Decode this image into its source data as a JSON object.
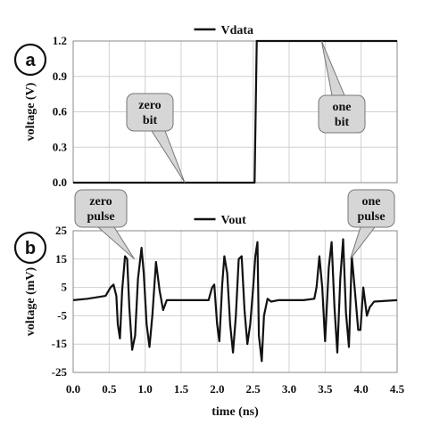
{
  "chart_data": [
    {
      "type": "line",
      "panel_label": "a",
      "legend": [
        "Vdata"
      ],
      "legend_position": "top-center",
      "ylabel": "voltage (V)",
      "xlim": [
        0,
        4.5
      ],
      "ylim": [
        0,
        1.2
      ],
      "y_ticks": [
        "0.0",
        "0.3",
        "0.6",
        "0.9",
        "1.2"
      ],
      "grid": true,
      "series": [
        {
          "name": "Vdata",
          "x": [
            0,
            2.52,
            2.55,
            4.5
          ],
          "y": [
            0,
            0,
            1.2,
            1.2
          ]
        }
      ],
      "annotations": [
        {
          "text": [
            "zero",
            "bit"
          ],
          "target_x": 1.55,
          "target_y": 0
        },
        {
          "text": [
            "one",
            "bit"
          ],
          "target_x": 3.45,
          "target_y": 1.2
        }
      ]
    },
    {
      "type": "line",
      "panel_label": "b",
      "legend": [
        "Vout"
      ],
      "legend_position": "top-center",
      "xlabel": "time (ns)",
      "ylabel": "voltage (mV)",
      "xlim": [
        0,
        4.5
      ],
      "ylim": [
        -25,
        25
      ],
      "x_ticks": [
        "0.0",
        "0.5",
        "1.0",
        "1.5",
        "2.0",
        "2.5",
        "3.0",
        "3.5",
        "4.0",
        "4.5"
      ],
      "y_ticks": [
        "25",
        "15",
        "5",
        "-5",
        "-15",
        "-25"
      ],
      "grid": true,
      "series": [
        {
          "name": "Vout",
          "x": [
            0.0,
            0.2,
            0.45,
            0.52,
            0.56,
            0.6,
            0.62,
            0.65,
            0.68,
            0.72,
            0.75,
            0.78,
            0.82,
            0.86,
            0.9,
            0.95,
            0.98,
            1.02,
            1.06,
            1.1,
            1.15,
            1.2,
            1.25,
            1.3,
            1.6,
            1.88,
            1.93,
            1.96,
            2.0,
            2.03,
            2.07,
            2.1,
            2.14,
            2.18,
            2.22,
            2.26,
            2.3,
            2.34,
            2.38,
            2.42,
            2.46,
            2.5,
            2.53,
            2.56,
            2.58,
            2.62,
            2.65,
            2.7,
            2.75,
            2.85,
            3.2,
            3.35,
            3.38,
            3.42,
            3.46,
            3.5,
            3.55,
            3.59,
            3.63,
            3.67,
            3.71,
            3.75,
            3.79,
            3.83,
            3.87,
            3.92,
            3.96,
            3.99,
            4.03,
            4.08,
            4.12,
            4.18,
            4.5
          ],
          "y": [
            0.5,
            1,
            2,
            5,
            6,
            2,
            -8,
            -13,
            4,
            16,
            15,
            -2,
            -17,
            -12,
            8,
            19,
            10,
            -8,
            -16,
            -5,
            14,
            4,
            -3,
            0.5,
            0.5,
            0.5,
            5,
            6,
            -8,
            -14,
            6,
            16,
            10,
            -8,
            -18,
            -5,
            15,
            16,
            -3,
            -15,
            -8,
            5,
            16,
            21,
            -12,
            -21,
            -5,
            1,
            0,
            0.5,
            0.5,
            1,
            5,
            16,
            5,
            -14,
            12,
            21,
            -2,
            -18,
            8,
            22,
            -4,
            -16,
            16,
            2,
            -10,
            -10,
            5,
            -5,
            -2,
            0,
            0.5
          ]
        }
      ],
      "annotations": [
        {
          "text": [
            "zero",
            "pulse"
          ],
          "target_x": 0.85,
          "target_y": 15
        },
        {
          "text": [
            "one",
            "pulse"
          ],
          "target_x": 3.85,
          "target_y": 15
        }
      ]
    }
  ]
}
